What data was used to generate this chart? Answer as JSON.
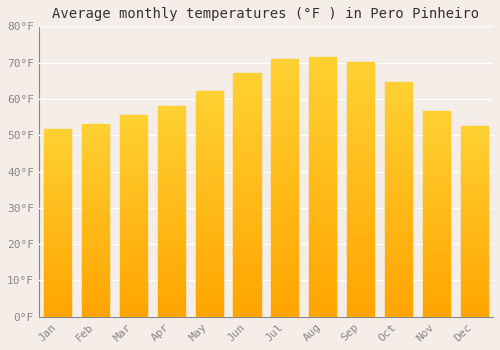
{
  "title": "Average monthly temperatures (°F ) in Pero Pinheiro",
  "months": [
    "Jan",
    "Feb",
    "Mar",
    "Apr",
    "May",
    "Jun",
    "Jul",
    "Aug",
    "Sep",
    "Oct",
    "Nov",
    "Dec"
  ],
  "values": [
    51.5,
    53.0,
    55.5,
    58.0,
    62.0,
    67.0,
    71.0,
    71.5,
    70.0,
    64.5,
    56.5,
    52.5
  ],
  "bar_color": "#FFA500",
  "bar_color_gradient_top": "#FFD966",
  "bar_color_gradient_bottom": "#FFA500",
  "background_color": "#f5ede8",
  "grid_color": "#ffffff",
  "ylim": [
    0,
    80
  ],
  "yticks": [
    0,
    10,
    20,
    30,
    40,
    50,
    60,
    70,
    80
  ],
  "ytick_labels": [
    "0°F",
    "10°F",
    "20°F",
    "30°F",
    "40°F",
    "50°F",
    "60°F",
    "70°F",
    "80°F"
  ],
  "title_fontsize": 10,
  "tick_fontsize": 8,
  "tick_color": "#888888",
  "font_family": "monospace"
}
